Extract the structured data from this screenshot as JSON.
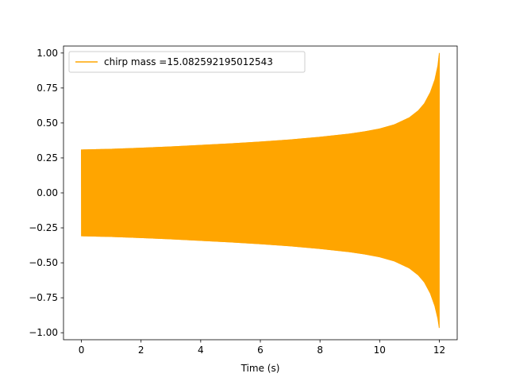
{
  "chart_data": {
    "type": "line",
    "title": "",
    "xlabel": "Time (s)",
    "ylabel": "",
    "xlim": [
      -0.6,
      12.6
    ],
    "ylim": [
      -1.05,
      1.05
    ],
    "x_ticks": [
      0,
      2,
      4,
      6,
      8,
      10,
      12
    ],
    "x_tick_labels": [
      "0",
      "2",
      "4",
      "6",
      "8",
      "10",
      "12"
    ],
    "y_ticks": [
      1.0,
      0.75,
      0.5,
      0.25,
      0.0,
      -0.25,
      -0.5,
      -0.75,
      -1.0
    ],
    "y_tick_labels": [
      "1.00",
      "0.75",
      "0.50",
      "0.25",
      "0.00",
      "−0.25",
      "−0.50",
      "−0.75",
      "−1.00"
    ],
    "grid": false,
    "legend_position": "top-left",
    "series": [
      {
        "name": "chirp mass =15.082592195012543",
        "color": "#ffa500",
        "x": [
          0,
          1,
          2,
          3,
          4,
          5,
          6,
          7,
          8,
          9,
          9.5,
          10,
          10.5,
          11,
          11.3,
          11.5,
          11.7,
          11.85,
          11.95,
          12.0
        ],
        "upper": [
          0.31,
          0.315,
          0.323,
          0.332,
          0.343,
          0.354,
          0.367,
          0.382,
          0.401,
          0.424,
          0.44,
          0.46,
          0.49,
          0.54,
          0.59,
          0.64,
          0.72,
          0.81,
          0.91,
          1.0
        ],
        "lower": [
          -0.31,
          -0.315,
          -0.323,
          -0.332,
          -0.343,
          -0.354,
          -0.367,
          -0.382,
          -0.401,
          -0.424,
          -0.44,
          -0.46,
          -0.49,
          -0.54,
          -0.59,
          -0.64,
          -0.72,
          -0.81,
          -0.9,
          -0.97
        ]
      }
    ]
  }
}
